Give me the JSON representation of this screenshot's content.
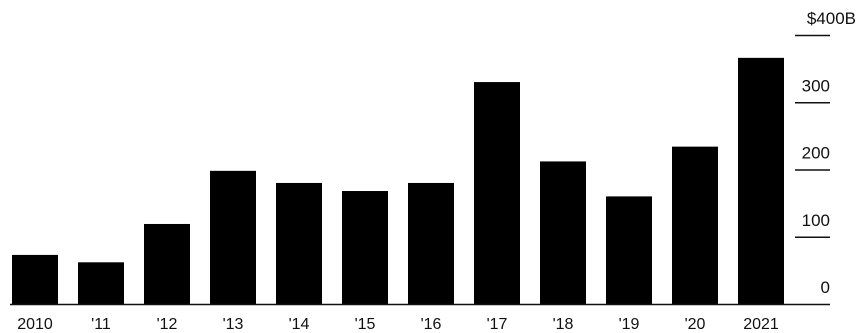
{
  "chart_data": {
    "type": "bar",
    "title": "",
    "xlabel": "",
    "ylabel": "",
    "categories": [
      "2010",
      "'11",
      "'12",
      "'13",
      "'14",
      "'15",
      "'16",
      "'17",
      "'18",
      "'19",
      "'20",
      "2021"
    ],
    "values": [
      73,
      62,
      119,
      198,
      180,
      168,
      180,
      330,
      212,
      160,
      234,
      366
    ],
    "ylim": [
      0,
      400
    ],
    "yticks": [
      0,
      100,
      200,
      300,
      400
    ],
    "ytick_labels": [
      "0",
      "100",
      "200",
      "300",
      "$400B"
    ],
    "grid": false,
    "axis_position": "right",
    "colors": {
      "bar": "#000000",
      "tick": "#111111"
    }
  }
}
